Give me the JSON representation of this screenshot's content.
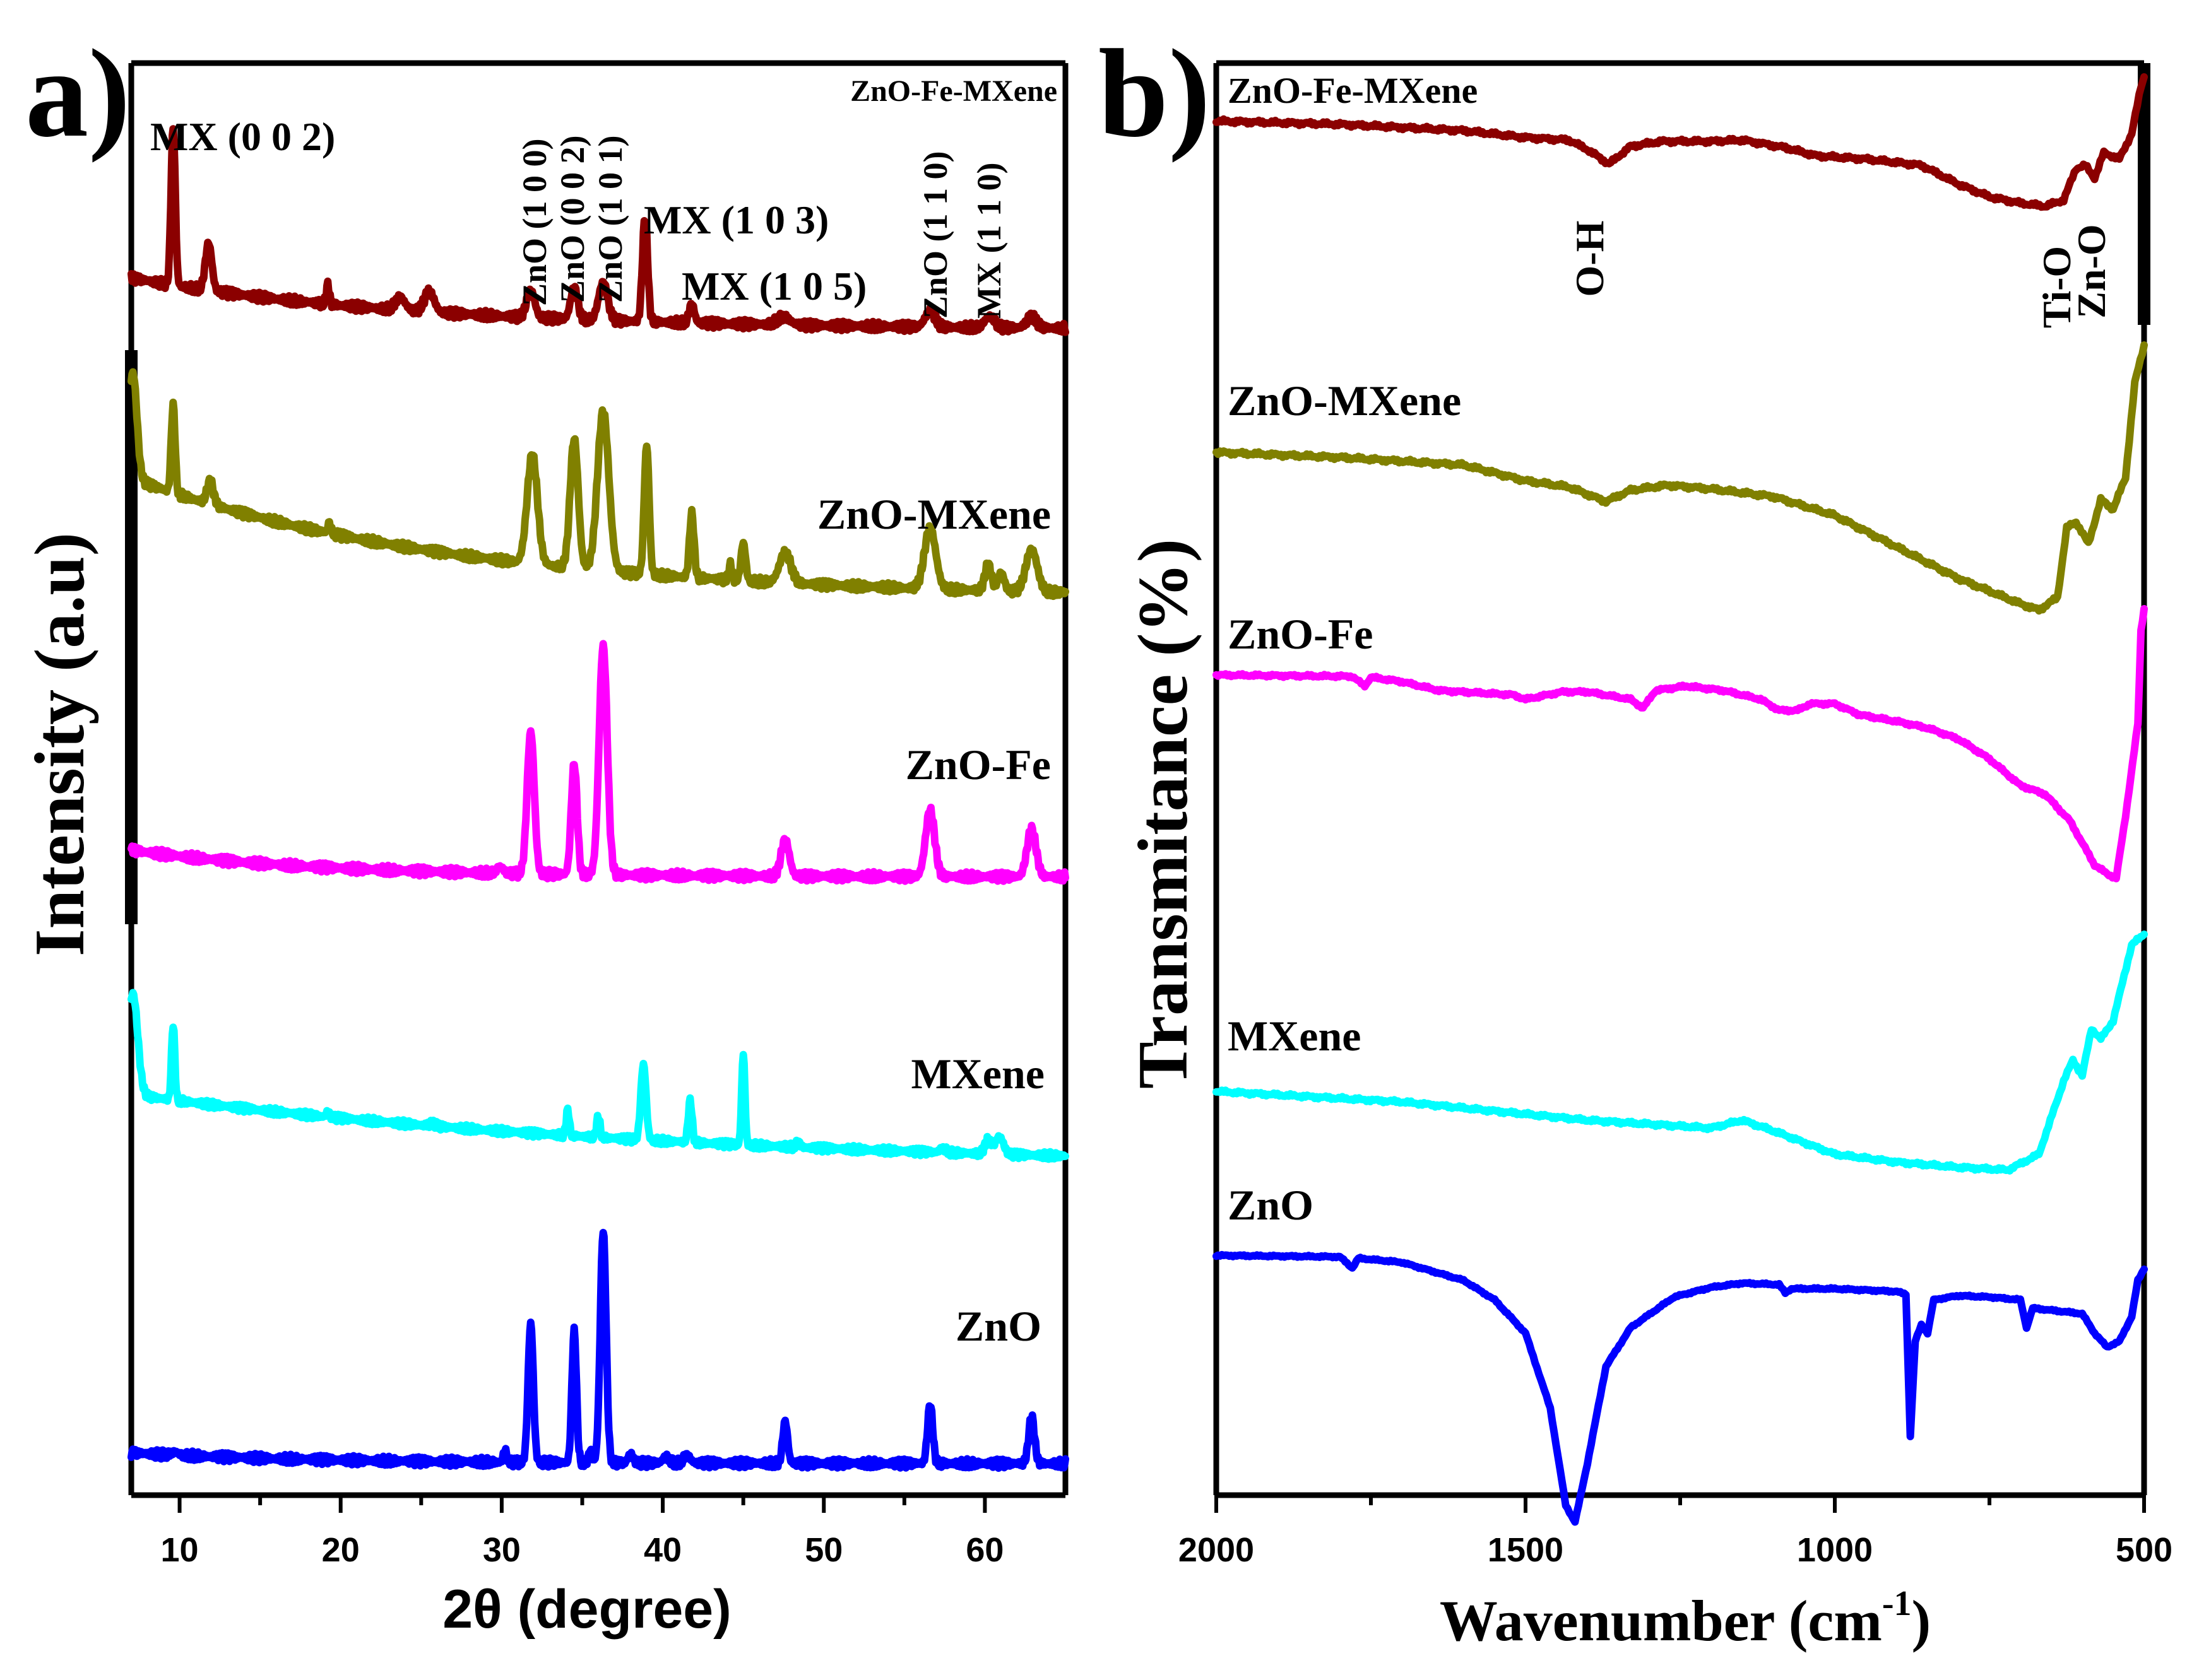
{
  "chart_data": [
    {
      "type": "line",
      "panel_label": "a)",
      "xlabel": "2θ (degree)",
      "ylabel": "Intensity (a.u)",
      "xlim": [
        7,
        65
      ],
      "xticks": [
        10,
        20,
        30,
        40,
        50,
        60
      ],
      "corner_label": "ZnO-Fe-MXene",
      "series": [
        {
          "name": "ZnO-Fe-MXene",
          "label": "",
          "color": "#8b0000",
          "baseline_start": 0.35,
          "baseline_end": 0.02,
          "curve": 0.3,
          "scale": 1.0,
          "peaks": [
            [
              9.6,
              1.0,
              0.13
            ],
            [
              11.8,
              0.3,
              0.2
            ],
            [
              19.2,
              0.12,
              0.1
            ],
            [
              23.7,
              0.08,
              0.3
            ],
            [
              25.5,
              0.13,
              0.3
            ],
            [
              31.8,
              0.17,
              0.25
            ],
            [
              34.5,
              0.2,
              0.22
            ],
            [
              36.3,
              0.24,
              0.28
            ],
            [
              38.9,
              0.66,
              0.16
            ],
            [
              41.8,
              0.12,
              0.16
            ],
            [
              47.5,
              0.05,
              0.4
            ],
            [
              56.6,
              0.1,
              0.3
            ],
            [
              60.3,
              0.07,
              0.3
            ],
            [
              62.9,
              0.07,
              0.3
            ]
          ]
        },
        {
          "name": "ZnO-MXene",
          "label": "ZnO-MXene",
          "color": "#808000",
          "baseline_start": 0.85,
          "baseline_end": 0.05,
          "curve": 0.35,
          "scale": 1.0,
          "peaks": [
            [
              7.1,
              0.7,
              0.25
            ],
            [
              9.6,
              0.58,
              0.12
            ],
            [
              11.9,
              0.15,
              0.2
            ],
            [
              19.3,
              0.07,
              0.1
            ],
            [
              31.9,
              0.72,
              0.32
            ],
            [
              34.5,
              0.85,
              0.25
            ],
            [
              36.3,
              1.05,
              0.35
            ],
            [
              39.0,
              0.85,
              0.15
            ],
            [
              41.8,
              0.42,
              0.14
            ],
            [
              44.2,
              0.1,
              0.1
            ],
            [
              45.0,
              0.25,
              0.14
            ],
            [
              47.6,
              0.2,
              0.35
            ],
            [
              56.6,
              0.4,
              0.35
            ],
            [
              60.2,
              0.17,
              0.2
            ],
            [
              61.0,
              0.12,
              0.2
            ],
            [
              62.9,
              0.28,
              0.35
            ]
          ]
        },
        {
          "name": "ZnO-Fe",
          "label": "ZnO-Fe",
          "color": "#ff00ff",
          "baseline_start": 0.17,
          "baseline_end": 0.0,
          "curve": 0.2,
          "scale": 1.0,
          "peaks": [
            [
              29.9,
              0.04,
              0.2
            ],
            [
              31.8,
              0.9,
              0.22
            ],
            [
              34.5,
              0.7,
              0.18
            ],
            [
              36.3,
              1.45,
              0.25
            ],
            [
              47.6,
              0.23,
              0.25
            ],
            [
              56.6,
              0.42,
              0.28
            ],
            [
              62.9,
              0.3,
              0.28
            ]
          ]
        },
        {
          "name": "MXene",
          "label": "MXene",
          "color": "#00ffff",
          "baseline_start": 0.6,
          "baseline_end": 0.0,
          "curve": 0.6,
          "scale": 1.0,
          "peaks": [
            [
              7.1,
              0.8,
              0.3
            ],
            [
              9.6,
              0.6,
              0.1
            ],
            [
              19.2,
              0.04,
              0.1
            ],
            [
              25.7,
              0.02,
              0.2
            ],
            [
              34.1,
              0.2,
              0.1
            ],
            [
              36.0,
              0.17,
              0.1
            ],
            [
              38.8,
              0.6,
              0.16
            ],
            [
              41.7,
              0.33,
              0.12
            ],
            [
              45.0,
              0.72,
              0.1
            ],
            [
              48.4,
              0.04,
              0.12
            ],
            [
              57.4,
              0.03,
              0.2
            ],
            [
              60.2,
              0.11,
              0.2
            ],
            [
              60.9,
              0.14,
              0.25
            ]
          ]
        },
        {
          "name": "ZnO",
          "label": "ZnO",
          "color": "#0000ff",
          "baseline_start": 0.07,
          "baseline_end": 0.0,
          "curve": 0.2,
          "scale": 1.0,
          "peaks": [
            [
              9.7,
              0.02,
              0.2
            ],
            [
              30.2,
              0.08,
              0.1
            ],
            [
              31.8,
              0.9,
              0.16
            ],
            [
              34.5,
              0.85,
              0.14
            ],
            [
              35.5,
              0.08,
              0.1
            ],
            [
              36.3,
              1.5,
              0.18
            ],
            [
              38.0,
              0.06,
              0.15
            ],
            [
              40.2,
              0.04,
              0.2
            ],
            [
              41.5,
              0.05,
              0.2
            ],
            [
              47.6,
              0.27,
              0.15
            ],
            [
              56.6,
              0.38,
              0.16
            ],
            [
              62.9,
              0.3,
              0.18
            ]
          ]
        }
      ],
      "annotations": [
        "MX (0 0 2)",
        "ZnO (1 0 0)",
        "ZnO (0 0 2)",
        "ZnO (1 0 1)",
        "MX (1 0 3)",
        "MX (1 0 5)",
        "ZnO (1 1 0)",
        "MX (1 1 0)"
      ]
    },
    {
      "type": "line",
      "panel_label": "b)",
      "xlabel": "Wavenumber (cm",
      "xlabel_sup": "-1",
      "xlabel_close": ")",
      "ylabel": "Transmitance (%)",
      "xlim": [
        2000,
        500
      ],
      "xticks": [
        2000,
        1500,
        1000,
        500
      ],
      "series": [
        {
          "name": "ZnO-Fe-MXene",
          "label": "ZnO-Fe-MXene",
          "color": "#8b0000",
          "points": [
            [
              2000,
              0.0
            ],
            [
              1800,
              0.05
            ],
            [
              1600,
              0.15
            ],
            [
              1500,
              0.26
            ],
            [
              1430,
              0.3
            ],
            [
              1400,
              0.45
            ],
            [
              1365,
              0.68
            ],
            [
              1330,
              0.4
            ],
            [
              1280,
              0.32
            ],
            [
              1200,
              0.32
            ],
            [
              1150,
              0.3
            ],
            [
              1080,
              0.42
            ],
            [
              1030,
              0.55
            ],
            [
              950,
              0.6
            ],
            [
              860,
              0.7
            ],
            [
              800,
              1.0
            ],
            [
              750,
              1.2
            ],
            [
              700,
              1.3
            ],
            [
              660,
              1.35
            ],
            [
              630,
              1.25
            ],
            [
              610,
              0.75
            ],
            [
              595,
              0.7
            ],
            [
              580,
              0.9
            ],
            [
              565,
              0.5
            ],
            [
              540,
              0.6
            ],
            [
              520,
              0.2
            ],
            [
              505,
              -0.55
            ],
            [
              500,
              -0.7
            ]
          ]
        },
        {
          "name": "ZnO-MXene",
          "label": "ZnO-MXene",
          "color": "#808000",
          "points": [
            [
              2000,
              0.0
            ],
            [
              1800,
              0.08
            ],
            [
              1600,
              0.2
            ],
            [
              1500,
              0.45
            ],
            [
              1430,
              0.55
            ],
            [
              1370,
              0.78
            ],
            [
              1330,
              0.6
            ],
            [
              1270,
              0.52
            ],
            [
              1200,
              0.58
            ],
            [
              1100,
              0.7
            ],
            [
              1000,
              1.0
            ],
            [
              900,
              1.5
            ],
            [
              800,
              2.0
            ],
            [
              700,
              2.4
            ],
            [
              670,
              2.5
            ],
            [
              640,
              2.3
            ],
            [
              625,
              1.2
            ],
            [
              610,
              1.1
            ],
            [
              590,
              1.45
            ],
            [
              570,
              0.75
            ],
            [
              550,
              0.9
            ],
            [
              530,
              0.4
            ],
            [
              515,
              -1.1
            ],
            [
              500,
              -1.7
            ]
          ]
        },
        {
          "name": "ZnO-Fe",
          "label": "ZnO-Fe",
          "color": "#ff00ff",
          "points": [
            [
              2000,
              0.0
            ],
            [
              1780,
              0.03
            ],
            [
              1760,
              0.25
            ],
            [
              1750,
              0.05
            ],
            [
              1700,
              0.15
            ],
            [
              1640,
              0.35
            ],
            [
              1520,
              0.45
            ],
            [
              1500,
              0.55
            ],
            [
              1440,
              0.38
            ],
            [
              1400,
              0.38
            ],
            [
              1330,
              0.55
            ],
            [
              1310,
              0.75
            ],
            [
              1290,
              0.35
            ],
            [
              1240,
              0.25
            ],
            [
              1180,
              0.35
            ],
            [
              1120,
              0.55
            ],
            [
              1090,
              0.8
            ],
            [
              1060,
              0.8
            ],
            [
              1040,
              0.65
            ],
            [
              1000,
              0.65
            ],
            [
              960,
              0.9
            ],
            [
              900,
              1.05
            ],
            [
              850,
              1.2
            ],
            [
              800,
              1.45
            ],
            [
              750,
              1.9
            ],
            [
              700,
              2.5
            ],
            [
              660,
              2.7
            ],
            [
              620,
              3.3
            ],
            [
              580,
              4.3
            ],
            [
              560,
              4.5
            ],
            [
              545,
              4.6
            ],
            [
              530,
              3.2
            ],
            [
              510,
              1.1
            ],
            [
              505,
              -1.0
            ],
            [
              500,
              -1.5
            ]
          ]
        },
        {
          "name": "MXene",
          "label": "MXene",
          "color": "#00ffff",
          "points": [
            [
              2000,
              0.0
            ],
            [
              1700,
              0.2
            ],
            [
              1400,
              0.55
            ],
            [
              1200,
              0.7
            ],
            [
              1150,
              0.55
            ],
            [
              1100,
              0.75
            ],
            [
              1000,
              1.2
            ],
            [
              900,
              1.35
            ],
            [
              800,
              1.45
            ],
            [
              720,
              1.5
            ],
            [
              670,
              1.2
            ],
            [
              630,
              -0.2
            ],
            [
              615,
              -0.6
            ],
            [
              600,
              -0.3
            ],
            [
              585,
              -1.2
            ],
            [
              570,
              -1.0
            ],
            [
              550,
              -1.35
            ],
            [
              520,
              -2.8
            ],
            [
              500,
              -3.0
            ]
          ]
        },
        {
          "name": "ZnO",
          "label": "ZnO",
          "color": "#0000ff",
          "points": [
            [
              2000,
              0.0
            ],
            [
              1800,
              0.05
            ],
            [
              1780,
              0.45
            ],
            [
              1770,
              0.1
            ],
            [
              1700,
              0.25
            ],
            [
              1600,
              0.9
            ],
            [
              1550,
              1.6
            ],
            [
              1500,
              2.8
            ],
            [
              1460,
              5.5
            ],
            [
              1435,
              9.0
            ],
            [
              1420,
              9.6
            ],
            [
              1400,
              7.5
            ],
            [
              1370,
              4.0
            ],
            [
              1330,
              2.6
            ],
            [
              1260,
              1.5
            ],
            [
              1200,
              1.15
            ],
            [
              1150,
              1.0
            ],
            [
              1090,
              1.05
            ],
            [
              1080,
              1.35
            ],
            [
              1070,
              1.2
            ],
            [
              1000,
              1.2
            ],
            [
              900,
              1.3
            ],
            [
              885,
              1.4
            ],
            [
              878,
              6.5
            ],
            [
              870,
              3.1
            ],
            [
              860,
              2.5
            ],
            [
              850,
              2.8
            ],
            [
              840,
              1.6
            ],
            [
              800,
              1.45
            ],
            [
              750,
              1.5
            ],
            [
              700,
              1.6
            ],
            [
              690,
              2.6
            ],
            [
              680,
              1.9
            ],
            [
              640,
              2.0
            ],
            [
              600,
              2.1
            ],
            [
              580,
              2.8
            ],
            [
              560,
              3.3
            ],
            [
              540,
              3.1
            ],
            [
              520,
              2.2
            ],
            [
              510,
              0.9
            ],
            [
              500,
              0.5
            ]
          ]
        }
      ],
      "annotations": [
        "O-H",
        "Ti-O",
        "Zn-O"
      ]
    }
  ]
}
